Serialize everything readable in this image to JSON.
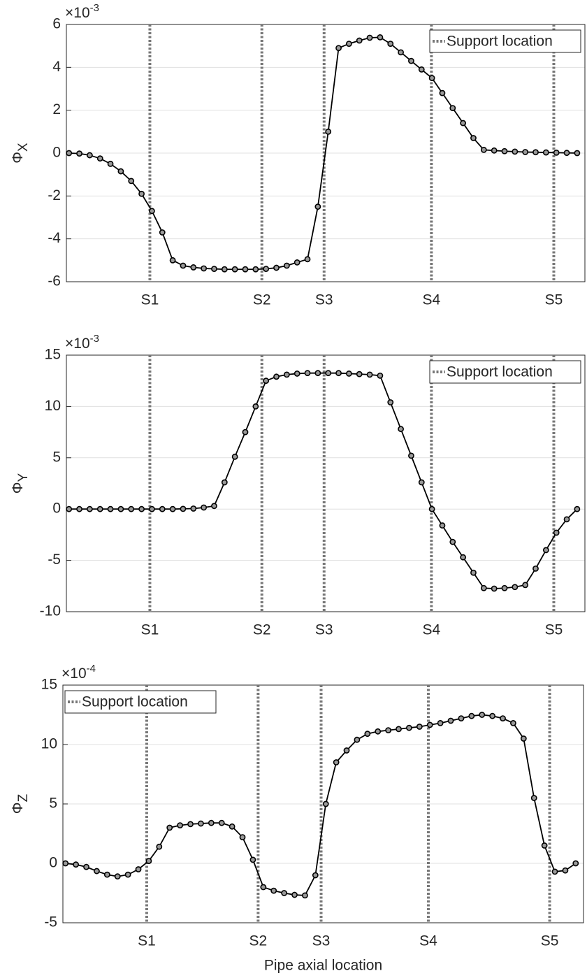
{
  "chart_data": [
    {
      "type": "line",
      "xlim": [
        -0.5,
        99.5
      ],
      "ylim": [
        -6,
        6
      ],
      "yticks": [
        -6,
        -4,
        -2,
        0,
        2,
        4,
        6
      ],
      "y_scale": {
        "base": "×10",
        "exponent": "-3"
      },
      "ylabel": {
        "symbol": "Φ",
        "subscript": "X"
      },
      "xticks": [
        {
          "value": 15.6,
          "label": "S1"
        },
        {
          "value": 37.2,
          "label": "S2"
        },
        {
          "value": 49.2,
          "label": "S3"
        },
        {
          "value": 69.9,
          "label": "S4"
        },
        {
          "value": 93.5,
          "label": "S5"
        }
      ],
      "support_lines": {
        "name": "Support location",
        "color": "#777777"
      },
      "legend": "upper right",
      "grid": true,
      "x": [
        0,
        2,
        4,
        6,
        8,
        10,
        12,
        14,
        16,
        18,
        20,
        22,
        24,
        26,
        28,
        30,
        32,
        34,
        36,
        38,
        40,
        42,
        44,
        46,
        48,
        50,
        52,
        54,
        56,
        58,
        60,
        62,
        64,
        66,
        68,
        70,
        72,
        74,
        76,
        78,
        80,
        82,
        84,
        86,
        88,
        90,
        92,
        94,
        96,
        98
      ],
      "series": [
        {
          "color": "#000000",
          "values": [
            0,
            -0.02,
            -0.1,
            -0.25,
            -0.5,
            -0.85,
            -1.3,
            -1.9,
            -2.7,
            -3.7,
            -5.0,
            -5.25,
            -5.33,
            -5.38,
            -5.4,
            -5.42,
            -5.42,
            -5.42,
            -5.42,
            -5.4,
            -5.35,
            -5.25,
            -5.1,
            -4.95,
            -2.5,
            1.0,
            4.9,
            5.1,
            5.25,
            5.38,
            5.4,
            5.1,
            4.7,
            4.3,
            3.9,
            3.5,
            2.8,
            2.1,
            1.4,
            0.7,
            0.15,
            0.12,
            0.09,
            0.07,
            0.05,
            0.04,
            0.03,
            0.02,
            0.01,
            0
          ]
        }
      ]
    },
    {
      "type": "line",
      "xlim": [
        -0.5,
        99.5
      ],
      "ylim": [
        -10,
        15
      ],
      "yticks": [
        -10,
        -5,
        0,
        5,
        10,
        15
      ],
      "y_scale": {
        "base": "×10",
        "exponent": "-3"
      },
      "ylabel": {
        "symbol": "Φ",
        "subscript": "Y"
      },
      "xticks": [
        {
          "value": 15.6,
          "label": "S1"
        },
        {
          "value": 37.2,
          "label": "S2"
        },
        {
          "value": 49.2,
          "label": "S3"
        },
        {
          "value": 69.9,
          "label": "S4"
        },
        {
          "value": 93.5,
          "label": "S5"
        }
      ],
      "support_lines": {
        "name": "Support location",
        "color": "#777777"
      },
      "legend": "upper right",
      "grid": true,
      "x": [
        0,
        2,
        4,
        6,
        8,
        10,
        12,
        14,
        16,
        18,
        20,
        22,
        24,
        26,
        28,
        30,
        32,
        34,
        36,
        38,
        40,
        42,
        44,
        46,
        48,
        50,
        52,
        54,
        56,
        58,
        60,
        62,
        64,
        66,
        68,
        70,
        72,
        74,
        76,
        78,
        80,
        82,
        84,
        86,
        88,
        90,
        92,
        94,
        96,
        98
      ],
      "series": [
        {
          "color": "#000000",
          "values": [
            0,
            0,
            0,
            0,
            0,
            0,
            0,
            0,
            0,
            0,
            0,
            0.02,
            0.05,
            0.15,
            0.3,
            2.6,
            5.1,
            7.5,
            10.0,
            12.5,
            12.9,
            13.1,
            13.2,
            13.25,
            13.25,
            13.25,
            13.25,
            13.2,
            13.15,
            13.1,
            13.0,
            10.4,
            7.8,
            5.2,
            2.6,
            0,
            -1.6,
            -3.2,
            -4.7,
            -6.2,
            -7.7,
            -7.75,
            -7.7,
            -7.6,
            -7.4,
            -5.8,
            -4.0,
            -2.3,
            -1.0,
            0
          ]
        }
      ]
    },
    {
      "type": "line",
      "xlim": [
        -0.5,
        99.5
      ],
      "ylim": [
        -5,
        15
      ],
      "yticks": [
        -5,
        0,
        5,
        10,
        15
      ],
      "y_scale": {
        "base": "×10",
        "exponent": "-4"
      },
      "ylabel": {
        "symbol": "Φ",
        "subscript": "Z"
      },
      "xlabel": "Pipe axial location",
      "xticks": [
        {
          "value": 15.6,
          "label": "S1"
        },
        {
          "value": 37.0,
          "label": "S2"
        },
        {
          "value": 49.1,
          "label": "S3"
        },
        {
          "value": 69.7,
          "label": "S4"
        },
        {
          "value": 93.0,
          "label": "S5"
        }
      ],
      "support_lines": {
        "name": "Support location",
        "color": "#777777"
      },
      "legend": "upper left",
      "grid": true,
      "x": [
        0,
        2,
        4,
        6,
        8,
        10,
        12,
        14,
        16,
        18,
        20,
        22,
        24,
        26,
        28,
        30,
        32,
        34,
        36,
        38,
        40,
        42,
        44,
        46,
        48,
        50,
        52,
        54,
        56,
        58,
        60,
        62,
        64,
        66,
        68,
        70,
        72,
        74,
        76,
        78,
        80,
        82,
        84,
        86,
        88,
        90,
        92,
        94,
        96,
        98
      ],
      "series": [
        {
          "color": "#000000",
          "values": [
            0,
            -0.1,
            -0.3,
            -0.65,
            -0.95,
            -1.1,
            -0.95,
            -0.5,
            0.2,
            1.4,
            3.0,
            3.2,
            3.3,
            3.35,
            3.4,
            3.4,
            3.1,
            2.2,
            0.3,
            -2.0,
            -2.3,
            -2.5,
            -2.65,
            -2.7,
            -1.0,
            5.0,
            8.5,
            9.5,
            10.4,
            10.9,
            11.1,
            11.2,
            11.3,
            11.4,
            11.5,
            11.65,
            11.8,
            12.0,
            12.2,
            12.4,
            12.5,
            12.4,
            12.2,
            11.8,
            10.5,
            5.5,
            1.5,
            -0.7,
            -0.6,
            0
          ]
        }
      ]
    }
  ]
}
